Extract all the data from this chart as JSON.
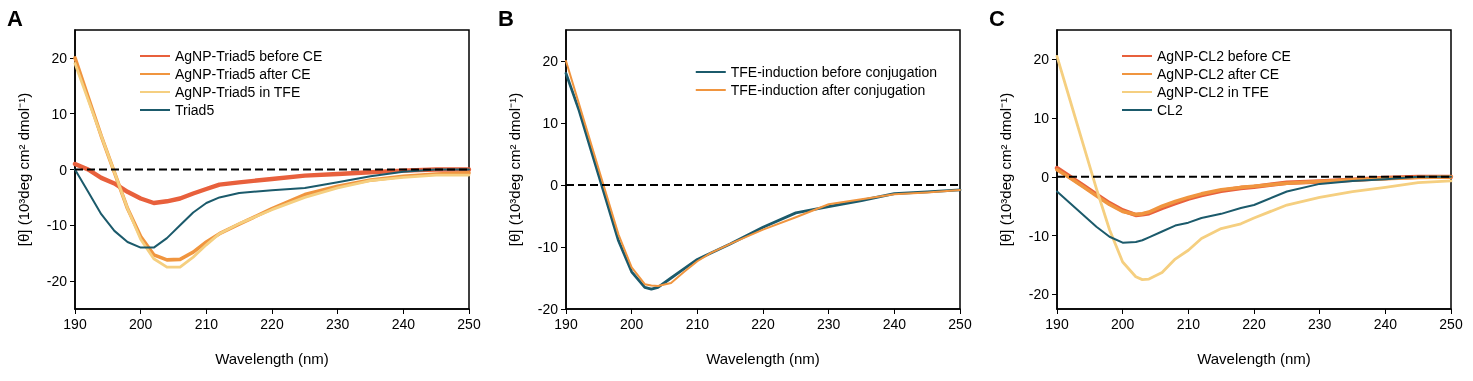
{
  "chart_data": [
    {
      "type": "line",
      "title": "A",
      "xlabel": "Wavelength (nm)",
      "ylabel": "[θ] (10³deg cm² dmol⁻¹)",
      "x": [
        190,
        192,
        194,
        196,
        198,
        200,
        202,
        204,
        206,
        208,
        210,
        212,
        215,
        220,
        225,
        230,
        235,
        240,
        245,
        250
      ],
      "series": [
        {
          "name": "AgNP-Triad5 before CE",
          "color": "#e8603c",
          "values": [
            1,
            0,
            -1.5,
            -2.5,
            -4,
            -5.2,
            -6,
            -5.7,
            -5.2,
            -4.3,
            -3.5,
            -2.7,
            -2.3,
            -1.7,
            -1.1,
            -0.8,
            -0.5,
            -0.2,
            0,
            0
          ]
        },
        {
          "name": "AgNP-Triad5 after CE",
          "color": "#f0953f",
          "values": [
            20,
            13,
            6,
            -0.5,
            -7,
            -12,
            -15.3,
            -16.2,
            -16.1,
            -14.8,
            -13,
            -11.5,
            -9.8,
            -7,
            -4.5,
            -3,
            -1.9,
            -1.2,
            -0.8,
            -0.6
          ]
        },
        {
          "name": "AgNP-Triad5 in TFE",
          "color": "#f5cf80",
          "values": [
            19,
            12.5,
            6,
            -0.5,
            -7,
            -12.5,
            -16,
            -17.5,
            -17.5,
            -15.7,
            -13.5,
            -11.5,
            -9.7,
            -7.2,
            -5,
            -3.3,
            -2,
            -1.4,
            -1,
            -1
          ]
        },
        {
          "name": "Triad5",
          "color": "#1b5a6b",
          "values": [
            0,
            -4,
            -8,
            -11,
            -13,
            -14,
            -14,
            -12.3,
            -10,
            -7.7,
            -6,
            -5,
            -4.2,
            -3.7,
            -3.3,
            -2.3,
            -1.2,
            -0.4,
            0,
            0
          ]
        }
      ],
      "xlim": [
        190,
        250
      ],
      "xticks": [
        190,
        200,
        210,
        220,
        230,
        240,
        250
      ],
      "ylim": [
        -25,
        25
      ],
      "yticks": [
        -20,
        -10,
        0,
        10,
        20
      ],
      "ref_lines": [
        {
          "axis": "y",
          "value": 0,
          "line_style": "dashed",
          "color": "#000000"
        }
      ],
      "legend": "top left"
    },
    {
      "type": "line",
      "title": "B",
      "xlabel": "Wavelength (nm)",
      "ylabel": "[θ] (10³deg cm² dmol⁻¹)",
      "x": [
        190,
        192,
        194,
        196,
        198,
        200,
        202,
        203,
        204,
        206,
        208,
        210,
        212,
        215,
        220,
        225,
        230,
        235,
        240,
        245,
        250
      ],
      "series": [
        {
          "name": "TFE-induction before conjugation",
          "color": "#1b5a6b",
          "values": [
            18,
            12,
            5,
            -2,
            -9,
            -14,
            -16.5,
            -16.8,
            -16.5,
            -15,
            -13.5,
            -12,
            -11,
            -9.5,
            -6.8,
            -4.5,
            -3.5,
            -2.5,
            -1.4,
            -1.1,
            -0.8
          ]
        },
        {
          "name": "TFE-induction after conjugation",
          "color": "#f0953f",
          "values": [
            20,
            13,
            6,
            -1,
            -8,
            -13.3,
            -16,
            -16.2,
            -16.3,
            -15.8,
            -14,
            -12.3,
            -11,
            -9.5,
            -7.2,
            -5.2,
            -3.1,
            -2.3,
            -1.5,
            -1.2,
            -0.8
          ]
        }
      ],
      "xlim": [
        190,
        250
      ],
      "xticks": [
        190,
        200,
        210,
        220,
        230,
        240,
        250
      ],
      "ylim": [
        -20,
        25
      ],
      "yticks": [
        -20,
        -10,
        0,
        10,
        20
      ],
      "ref_lines": [
        {
          "axis": "y",
          "value": 0,
          "line_style": "dashed",
          "color": "#000000"
        }
      ],
      "legend": "top right"
    },
    {
      "type": "line",
      "title": "C",
      "xlabel": "Wavelength (nm)",
      "ylabel": "[θ] (10³deg cm² dmol⁻¹)",
      "x": [
        190,
        192,
        194,
        196,
        198,
        200,
        202,
        203,
        204,
        206,
        208,
        210,
        212,
        215,
        218,
        220,
        225,
        230,
        235,
        240,
        245,
        250
      ],
      "series": [
        {
          "name": "AgNP-CL2 before CE",
          "color": "#e8603c",
          "values": [
            1.5,
            0,
            -1.5,
            -3,
            -4.5,
            -5.7,
            -6.5,
            -6.4,
            -6.2,
            -5.3,
            -4.5,
            -3.7,
            -3.1,
            -2.4,
            -1.9,
            -1.7,
            -1,
            -0.8,
            -0.5,
            -0.2,
            0,
            0
          ]
        },
        {
          "name": "AgNP-CL2 after CE",
          "color": "#f0953f",
          "values": [
            1.2,
            -0.2,
            -1.7,
            -3.2,
            -4.7,
            -5.9,
            -6.4,
            -6.3,
            -6,
            -5,
            -4.2,
            -3.5,
            -2.9,
            -2.2,
            -1.8,
            -1.6,
            -1.1,
            -0.8,
            -0.5,
            -0.3,
            -0.1,
            0
          ]
        },
        {
          "name": "AgNP-CL2 in TFE",
          "color": "#f5cf80",
          "values": [
            20.5,
            13,
            5.5,
            -2,
            -9,
            -14.5,
            -17,
            -17.5,
            -17.4,
            -16.3,
            -14,
            -12.5,
            -10.5,
            -8.8,
            -8,
            -7,
            -4.8,
            -3.5,
            -2.5,
            -1.8,
            -1,
            -0.7
          ]
        },
        {
          "name": "CL2",
          "color": "#1b5a6b",
          "values": [
            -2.5,
            -4.5,
            -6.5,
            -8.5,
            -10.2,
            -11.2,
            -11.1,
            -10.8,
            -10.3,
            -9.3,
            -8.3,
            -7.8,
            -7,
            -6.3,
            -5.3,
            -4.8,
            -2.5,
            -1.2,
            -0.7,
            -0.4,
            0,
            0
          ]
        }
      ],
      "xlim": [
        190,
        250
      ],
      "xticks": [
        190,
        200,
        210,
        220,
        230,
        240,
        250
      ],
      "ylim": [
        -22.5,
        25
      ],
      "yticks": [
        -20,
        -10,
        0,
        10,
        20
      ],
      "ref_lines": [
        {
          "axis": "y",
          "value": 0,
          "line_style": "dashed",
          "color": "#000000"
        }
      ],
      "legend": "top left"
    }
  ]
}
